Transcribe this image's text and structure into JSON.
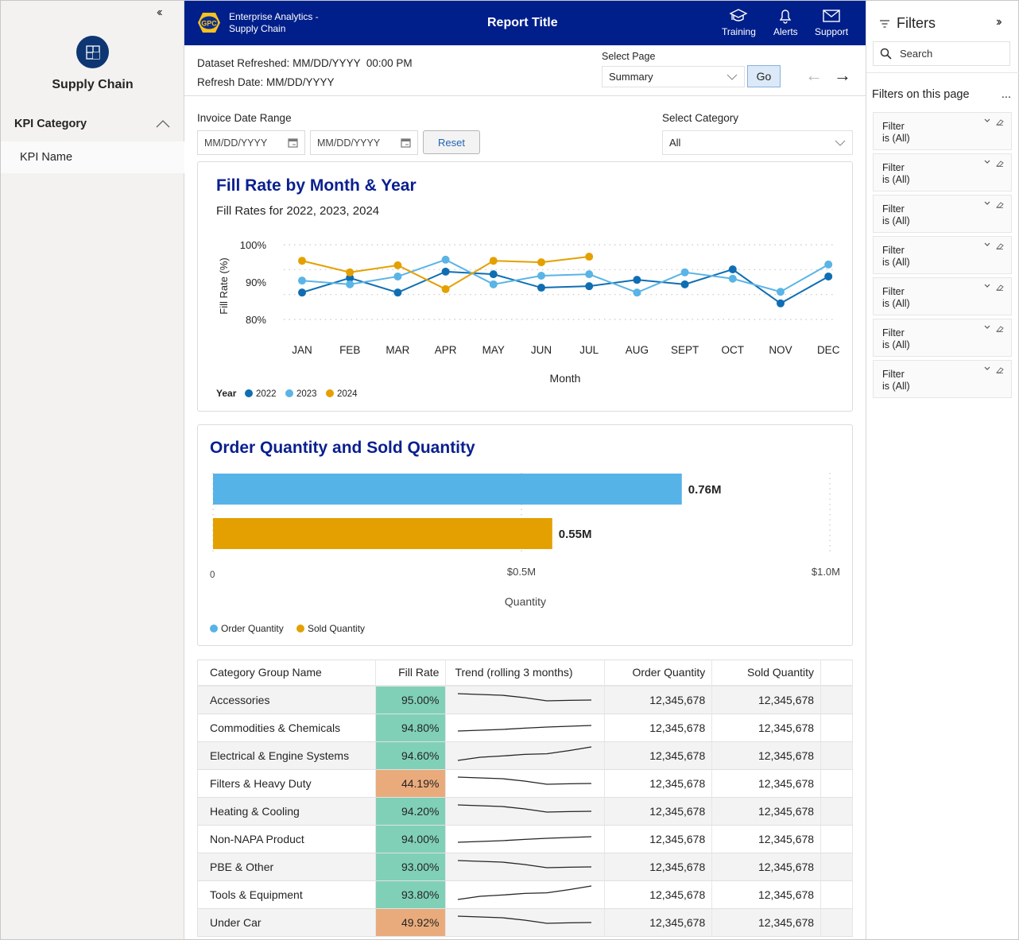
{
  "sidebar": {
    "collapse_icon": "double-chevron-left",
    "brand_icon": "layout-icon",
    "brand_name": "Supply Chain",
    "category_label": "KPI Category",
    "items": [
      {
        "label": "KPI Name"
      }
    ]
  },
  "header": {
    "logo_text": "GPC",
    "app_title_line1": "Enterprise Analytics -",
    "app_title_line2": "Supply Chain",
    "report_title": "Report Title",
    "buttons": [
      {
        "label": "Training",
        "icon": "graduation-cap"
      },
      {
        "label": "Alerts",
        "icon": "bell"
      },
      {
        "label": "Support",
        "icon": "envelope"
      }
    ],
    "colors": {
      "bar": "#001f8a"
    }
  },
  "info": {
    "dataset_refreshed": "Dataset Refreshed: MM/DD/YYYY  00:00 PM",
    "refresh_date": "Refresh Date: MM/DD/YYYY"
  },
  "page_select": {
    "label": "Select Page",
    "value": "Summary",
    "go_label": "Go",
    "back_arrow": "←",
    "forward_arrow": "→"
  },
  "filters_bar": {
    "date_range_label": "Invoice Date Range",
    "start_placeholder": "MM/DD/YYYY",
    "end_placeholder": "MM/DD/YYYY",
    "reset_label": "Reset",
    "category_label": "Select Category",
    "category_value": "All"
  },
  "chart_data": [
    {
      "type": "line",
      "title": "Fill Rate by Month & Year",
      "subtitle": "Fill Rates for 2022, 2023, 2024",
      "xlabel": "Month",
      "ylabel": "Fill Rate (%)",
      "ylim": [
        80,
        100
      ],
      "yticks": [
        "100%",
        "90%",
        "80%"
      ],
      "ytick_values": [
        100,
        90,
        80
      ],
      "grid": true,
      "categories": [
        "JAN",
        "FEB",
        "MAR",
        "APR",
        "MAY",
        "JUN",
        "JUL",
        "AUG",
        "SEPT",
        "OCT",
        "NOV",
        "DEC"
      ],
      "legend_title": "Year",
      "legend_position": "bottom-left",
      "series": [
        {
          "name": "2022",
          "color": "#0f6eb3",
          "values": [
            87.2,
            91.1,
            87.2,
            92.8,
            92.1,
            88.5,
            88.9,
            90.6,
            89.4,
            93.4,
            84.3,
            91.5
          ]
        },
        {
          "name": "2023",
          "color": "#5ab4e6",
          "values": [
            90.4,
            89.4,
            91.5,
            96.0,
            89.4,
            91.7,
            92.1,
            87.2,
            92.6,
            90.9,
            87.4,
            94.7
          ]
        },
        {
          "name": "2024",
          "color": "#e5a000",
          "values": [
            95.7,
            92.6,
            94.5,
            88.1,
            95.7,
            95.3,
            96.8,
            null,
            null,
            null,
            null,
            null
          ]
        }
      ]
    },
    {
      "type": "bar",
      "orientation": "horizontal",
      "title": "Order Quantity and Sold Quantity",
      "xlabel": "Quantity",
      "xlim": [
        0,
        1000000
      ],
      "xticks": [
        "0",
        "$0.5M",
        "$1.0M"
      ],
      "xtick_values": [
        0,
        500000,
        1000000
      ],
      "legend_position": "bottom-left",
      "categories": [
        "Order Quantity",
        "Sold Quantity"
      ],
      "values": [
        760000,
        550000
      ],
      "data_labels": [
        "0.76M",
        "0.55M"
      ],
      "colors": [
        "#56b3e8",
        "#e4a000"
      ]
    }
  ],
  "table": {
    "columns": [
      "Category Group Name",
      "Fill Rate",
      "Trend (rolling 3 months)",
      "Order Quantity",
      "Sold Quantity"
    ],
    "good_color": "#80d0b8",
    "bad_color": "#eaab7c",
    "rows": [
      {
        "name": "Accessories",
        "fill_rate": "95.00%",
        "status": "good",
        "trend": [
          0.8,
          0.75,
          0.7,
          0.55,
          0.35,
          0.38,
          0.4
        ],
        "order_qty": "12,345,678",
        "sold_qty": "12,345,678"
      },
      {
        "name": "Commodities & Chemicals",
        "fill_rate": "94.80%",
        "status": "good",
        "trend": [
          0.2,
          0.25,
          0.3,
          0.38,
          0.45,
          0.5,
          0.55
        ],
        "order_qty": "12,345,678",
        "sold_qty": "12,345,678"
      },
      {
        "name": "Electrical & Engine Systems",
        "fill_rate": "94.60%",
        "status": "good",
        "trend": [
          0.1,
          0.3,
          0.38,
          0.48,
          0.52,
          0.72,
          0.95
        ],
        "order_qty": "12,345,678",
        "sold_qty": "12,345,678"
      },
      {
        "name": "Filters & Heavy Duty",
        "fill_rate": "44.19%",
        "status": "bad",
        "trend": [
          0.8,
          0.75,
          0.7,
          0.55,
          0.35,
          0.38,
          0.4
        ],
        "order_qty": "12,345,678",
        "sold_qty": "12,345,678"
      },
      {
        "name": "Heating & Cooling",
        "fill_rate": "94.20%",
        "status": "good",
        "trend": [
          0.8,
          0.75,
          0.7,
          0.55,
          0.35,
          0.38,
          0.4
        ],
        "order_qty": "12,345,678",
        "sold_qty": "12,345,678"
      },
      {
        "name": "Non-NAPA Product",
        "fill_rate": "94.00%",
        "status": "good",
        "trend": [
          0.2,
          0.25,
          0.3,
          0.38,
          0.45,
          0.5,
          0.55
        ],
        "order_qty": "12,345,678",
        "sold_qty": "12,345,678"
      },
      {
        "name": "PBE & Other",
        "fill_rate": "93.00%",
        "status": "good",
        "trend": [
          0.8,
          0.75,
          0.7,
          0.55,
          0.35,
          0.38,
          0.4
        ],
        "order_qty": "12,345,678",
        "sold_qty": "12,345,678"
      },
      {
        "name": "Tools & Equipment",
        "fill_rate": "93.80%",
        "status": "good",
        "trend": [
          0.1,
          0.3,
          0.38,
          0.48,
          0.52,
          0.72,
          0.95
        ],
        "order_qty": "12,345,678",
        "sold_qty": "12,345,678"
      },
      {
        "name": "Under Car",
        "fill_rate": "49.92%",
        "status": "bad",
        "trend": [
          0.8,
          0.75,
          0.7,
          0.55,
          0.35,
          0.38,
          0.4
        ],
        "order_qty": "12,345,678",
        "sold_qty": "12,345,678"
      }
    ]
  },
  "filters_pane": {
    "title": "Filters",
    "expand_icon": "double-chevron-right",
    "search_placeholder": "Search",
    "section_title": "Filters on this page",
    "more_label": "...",
    "cards": [
      {
        "name": "Filter",
        "state": "is (All)"
      },
      {
        "name": "Filter",
        "state": "is (All)"
      },
      {
        "name": "Filter",
        "state": "is (All)"
      },
      {
        "name": "Filter",
        "state": "is (All)"
      },
      {
        "name": "Filter",
        "state": "is (All)"
      },
      {
        "name": "Filter",
        "state": "is (All)"
      },
      {
        "name": "Filter",
        "state": "is (All)"
      }
    ]
  }
}
